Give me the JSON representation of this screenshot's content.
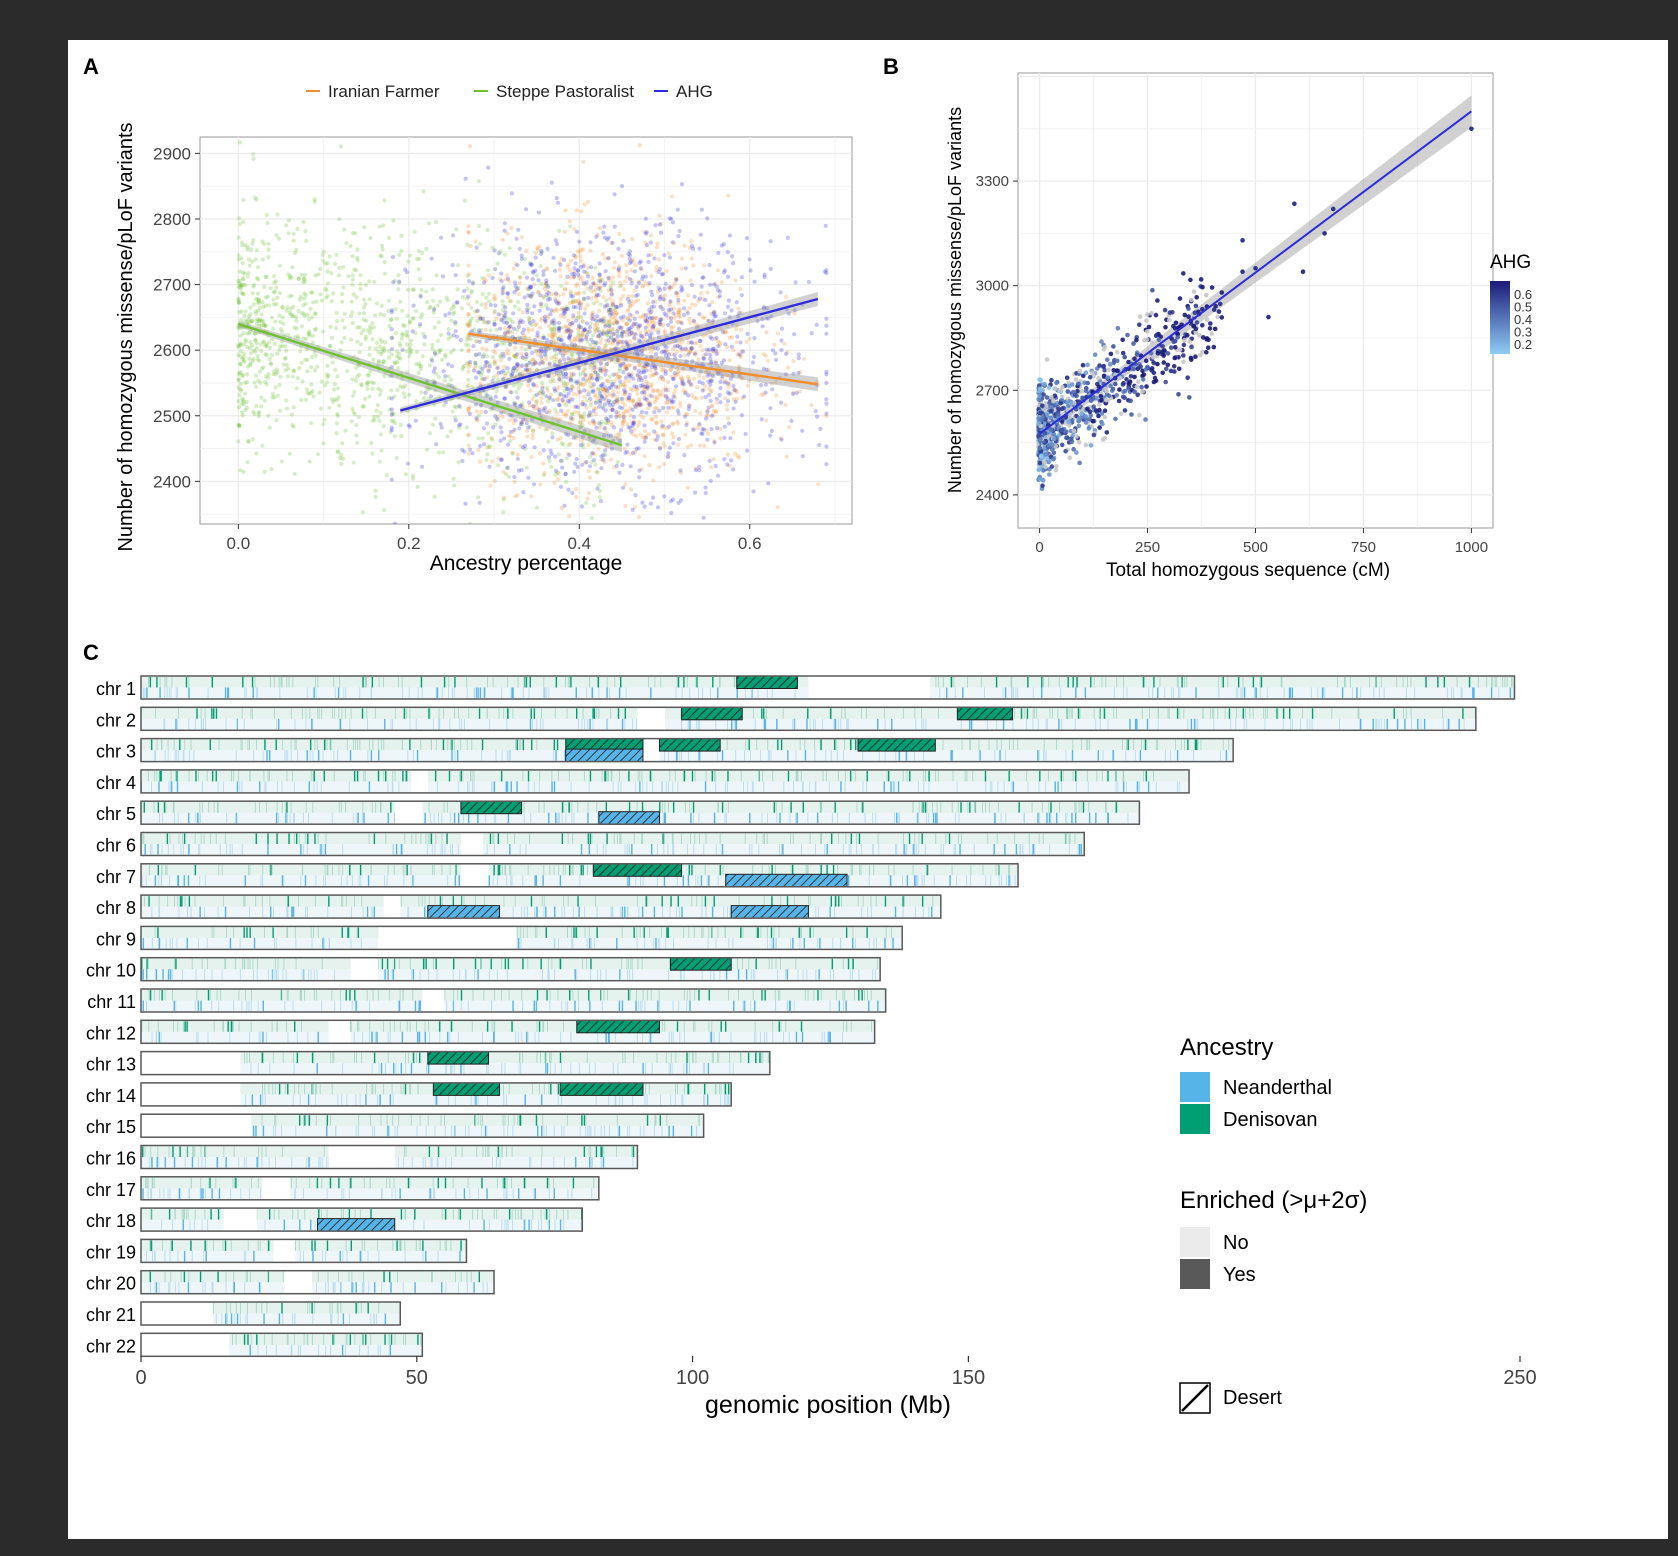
{
  "panels": {
    "a": "A",
    "b": "B",
    "c": "C"
  },
  "chart_data": [
    {
      "type": "scatter",
      "panel": "A",
      "xlabel": "Ancestry percentage",
      "ylabel": "Number of homozygous missense/pLoF variants",
      "xlim": [
        -0.045,
        0.72
      ],
      "ylim": [
        2335,
        2925
      ],
      "x_ticks": [
        0.0,
        0.2,
        0.4,
        0.6
      ],
      "x_tick_labels": [
        "0.0",
        "0.2",
        "0.4",
        "0.6"
      ],
      "y_ticks": [
        2400,
        2500,
        2600,
        2700,
        2800,
        2900
      ],
      "y_tick_labels": [
        "2400",
        "2500",
        "2600",
        "2700",
        "2800",
        "2900"
      ],
      "grid": true,
      "legend_position": "top",
      "series": [
        {
          "name": "Iranian Farmer",
          "color": "#f28e2b",
          "cloud": {
            "x_center": 0.44,
            "x_sd": 0.085,
            "x_range": [
              0.27,
              0.69
            ],
            "y_center": 2590,
            "y_sd": 90,
            "n": 1300
          },
          "fit": {
            "x": [
              0.27,
              0.68
            ],
            "y": [
              2625,
              2548
            ]
          }
        },
        {
          "name": "Steppe Pastoralist",
          "color": "#6cc32e",
          "cloud": {
            "x_center": 0.12,
            "x_sd": 0.1,
            "x_range": [
              0.0,
              0.45
            ],
            "y_center": 2610,
            "y_sd": 90,
            "n": 1300
          },
          "fit": {
            "x": [
              0.0,
              0.45
            ],
            "y": [
              2640,
              2455
            ]
          }
        },
        {
          "name": "AHG",
          "color": "#2b2be0",
          "cloud": {
            "x_center": 0.43,
            "x_sd": 0.11,
            "x_range": [
              0.18,
              0.69
            ],
            "y_center": 2590,
            "y_sd": 95,
            "n": 1300
          },
          "fit": {
            "x": [
              0.19,
              0.68
            ],
            "y": [
              2508,
              2678
            ]
          }
        }
      ]
    },
    {
      "type": "scatter",
      "panel": "B",
      "xlabel": "Total homozygous sequence (cM)",
      "ylabel": "Number of homozygous missense/pLoF variants",
      "xlim": [
        -50,
        1050
      ],
      "ylim": [
        2305,
        3610
      ],
      "x_ticks": [
        0,
        250,
        500,
        750,
        1000
      ],
      "x_tick_labels": [
        "0",
        "250",
        "500",
        "750",
        "1000"
      ],
      "y_ticks": [
        2400,
        2700,
        3000,
        3300
      ],
      "y_tick_labels": [
        "2400",
        "2700",
        "3000",
        "3300"
      ],
      "grid": true,
      "fit": {
        "x": [
          0,
          1000
        ],
        "y": [
          2575,
          3500
        ]
      },
      "points": {
        "n": 1000,
        "ahg_range": [
          0.2,
          0.6
        ]
      },
      "colorbar": {
        "title": "AHG",
        "ticks": [
          "0.6",
          "0.5",
          "0.4",
          "0.3",
          "0.2"
        ],
        "low_color": "#8fcdf5",
        "high_color": "#1a1a78"
      }
    },
    {
      "type": "heatmap",
      "panel": "C",
      "xlabel": "genomic position (Mb)",
      "x_ticks": [
        0,
        50,
        100,
        150,
        250
      ],
      "x_tick_labels": [
        "0",
        "50",
        "100",
        "150",
        "250"
      ],
      "xlim": [
        0,
        250
      ],
      "chromosomes": [
        {
          "label": "chr 1",
          "length": 249,
          "gaps": [
            [
              121,
              143
            ]
          ],
          "deserts": [
            {
              "s": 108,
              "e": 119,
              "t": "D"
            }
          ]
        },
        {
          "label": "chr 2",
          "length": 242,
          "gaps": [
            [
              90,
              95
            ]
          ],
          "deserts": [
            {
              "s": 98,
              "e": 109,
              "t": "D"
            },
            {
              "s": 148,
              "e": 158,
              "t": "D"
            }
          ]
        },
        {
          "label": "chr 3",
          "length": 198,
          "gaps": [
            [
              91,
              94
            ]
          ],
          "deserts": [
            {
              "s": 77,
              "e": 91,
              "t": "D"
            },
            {
              "s": 94,
              "e": 105,
              "t": "D"
            },
            {
              "s": 130,
              "e": 144,
              "t": "D"
            },
            {
              "s": 77,
              "e": 91,
              "t": "N"
            }
          ]
        },
        {
          "label": "chr 4",
          "length": 190,
          "gaps": [
            [
              49,
              52
            ]
          ],
          "deserts": []
        },
        {
          "label": "chr 5",
          "length": 181,
          "gaps": [
            [
              46,
              51
            ]
          ],
          "deserts": [
            {
              "s": 58,
              "e": 69,
              "t": "D"
            },
            {
              "s": 83,
              "e": 94,
              "t": "N"
            }
          ]
        },
        {
          "label": "chr 6",
          "length": 171,
          "gaps": [
            [
              58,
              62
            ]
          ],
          "deserts": []
        },
        {
          "label": "chr 7",
          "length": 159,
          "gaps": [
            [
              58,
              63
            ]
          ],
          "deserts": [
            {
              "s": 82,
              "e": 98,
              "t": "D"
            },
            {
              "s": 106,
              "e": 128,
              "t": "N"
            }
          ]
        },
        {
          "label": "chr 8",
          "length": 145,
          "gaps": [
            [
              44,
              47
            ]
          ],
          "deserts": [
            {
              "s": 52,
              "e": 65,
              "t": "N"
            },
            {
              "s": 107,
              "e": 121,
              "t": "N"
            }
          ]
        },
        {
          "label": "chr 9",
          "length": 138,
          "gaps": [
            [
              43,
              68
            ]
          ],
          "deserts": []
        },
        {
          "label": "chr 10",
          "length": 134,
          "gaps": [
            [
              38,
              43
            ]
          ],
          "deserts": [
            {
              "s": 96,
              "e": 107,
              "t": "D"
            }
          ]
        },
        {
          "label": "chr 11",
          "length": 135,
          "gaps": [
            [
              51,
              55
            ]
          ],
          "deserts": []
        },
        {
          "label": "chr 12",
          "length": 133,
          "gaps": [
            [
              34,
              38
            ]
          ],
          "deserts": [
            {
              "s": 79,
              "e": 94,
              "t": "D"
            }
          ]
        },
        {
          "label": "chr 13",
          "length": 114,
          "gaps": [
            [
              0,
              18
            ]
          ],
          "deserts": [
            {
              "s": 52,
              "e": 63,
              "t": "D"
            }
          ]
        },
        {
          "label": "chr 14",
          "length": 107,
          "gaps": [
            [
              0,
              18
            ]
          ],
          "deserts": [
            {
              "s": 53,
              "e": 65,
              "t": "D"
            },
            {
              "s": 76,
              "e": 91,
              "t": "D"
            }
          ]
        },
        {
          "label": "chr 15",
          "length": 102,
          "gaps": [
            [
              0,
              20
            ]
          ],
          "deserts": []
        },
        {
          "label": "chr 16",
          "length": 90,
          "gaps": [
            [
              34,
              46
            ]
          ],
          "deserts": []
        },
        {
          "label": "chr 17",
          "length": 83,
          "gaps": [
            [
              22,
              27
            ]
          ],
          "deserts": []
        },
        {
          "label": "chr 18",
          "length": 80,
          "gaps": [
            [
              15,
              21
            ]
          ],
          "deserts": [
            {
              "s": 32,
              "e": 46,
              "t": "N"
            }
          ]
        },
        {
          "label": "chr 19",
          "length": 59,
          "gaps": [
            [
              24,
              28
            ]
          ],
          "deserts": []
        },
        {
          "label": "chr 20",
          "length": 64,
          "gaps": [
            [
              26,
              31
            ]
          ],
          "deserts": []
        },
        {
          "label": "chr 21",
          "length": 47,
          "gaps": [
            [
              0,
              13
            ]
          ],
          "deserts": []
        },
        {
          "label": "chr 22",
          "length": 51,
          "gaps": [
            [
              0,
              16
            ]
          ],
          "deserts": []
        }
      ],
      "legend": {
        "ancestry_title": "Ancestry",
        "ancestry": [
          {
            "name": "Neanderthal",
            "color": "#56b4e9"
          },
          {
            "name": "Denisovan",
            "color": "#009e73"
          }
        ],
        "enriched_title": "Enriched (>μ+2σ)",
        "enriched": [
          {
            "name": "No",
            "color": "#ebebeb"
          },
          {
            "name": "Yes",
            "color": "#595959"
          }
        ],
        "desert_label": "Desert"
      }
    }
  ]
}
